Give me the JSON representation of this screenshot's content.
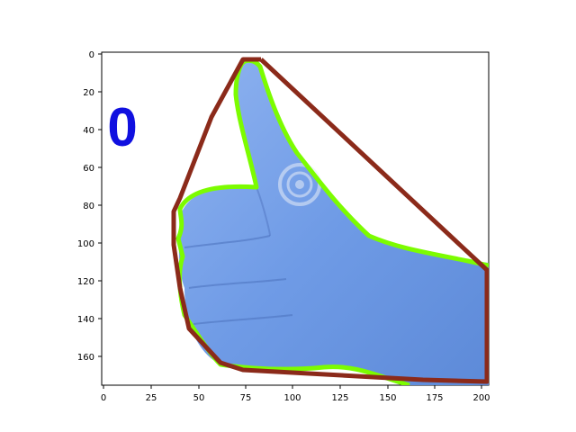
{
  "image": {
    "overlay_label": "0",
    "overlay_label_color": "#1010e0",
    "hull_color": "#8b2a1a",
    "contour_color": "#7cfc00",
    "hand_color": "#6f9be6",
    "background_color": "#ffffff"
  },
  "axes": {
    "x_ticks": [
      "0",
      "25",
      "50",
      "75",
      "100",
      "125",
      "150",
      "175",
      "200"
    ],
    "y_ticks": [
      "0",
      "20",
      "40",
      "60",
      "80",
      "100",
      "120",
      "140",
      "160"
    ],
    "xlim": [
      0,
      203
    ],
    "ylim": [
      175,
      0
    ]
  }
}
